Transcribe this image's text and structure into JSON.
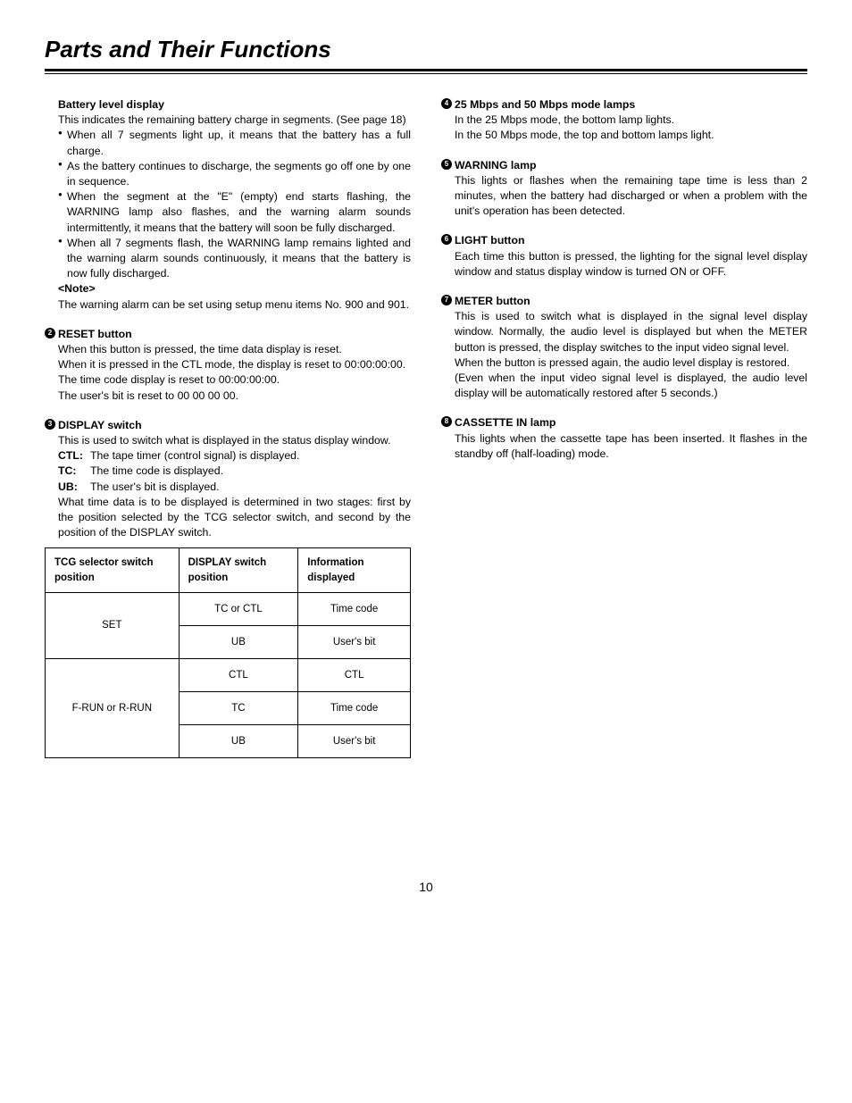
{
  "page": {
    "title": "Parts and Their Functions",
    "number": "10"
  },
  "left": {
    "battery": {
      "heading": "Battery level display",
      "intro": "This indicates the remaining battery charge in segments.  (See page 18)",
      "bullets": [
        "When all 7 segments light up, it means that the battery has a full charge.",
        "As the battery continues to discharge, the segments go off one by one in sequence.",
        "When the segment at the \"E\" (empty) end starts flashing, the WARNING lamp also flashes, and the warning alarm sounds intermittently, it means that the battery will soon be fully discharged.",
        "When all 7 segments flash, the WARNING lamp remains lighted and the warning alarm sounds continuously, it means that the battery is now fully discharged."
      ],
      "note_label": "<Note>",
      "note_text": "The warning alarm can be set using setup menu items No. 900 and 901."
    },
    "reset": {
      "num": "2",
      "heading": "RESET button",
      "p1": "When this button is pressed, the time data display is reset.",
      "p2": "When it is pressed in the CTL mode, the display is reset to 00:00:00:00.",
      "p3": "The time code display is reset to 00:00:00:00.",
      "p4": "The user's bit is reset to 00 00 00 00."
    },
    "display": {
      "num": "3",
      "heading": "DISPLAY switch",
      "intro": "This is used to switch what is displayed in the status display window.",
      "defs": [
        {
          "label": "CTL:",
          "text": "The tape timer (control signal) is displayed."
        },
        {
          "label": "TC:",
          "text": "The time code is displayed."
        },
        {
          "label": "UB:",
          "text": "The user's bit is displayed."
        }
      ],
      "after": "What time data is to be displayed is determined in two stages: first by the position selected by the TCG selector switch, and second by the position of the DISPLAY switch."
    },
    "table": {
      "headers": [
        "TCG selector switch position",
        "DISPLAY switch position",
        "Information displayed"
      ],
      "rows": [
        {
          "tcg": "SET",
          "rowspan": 2,
          "disp": "TC or CTL",
          "info": "Time code"
        },
        {
          "disp": "UB",
          "info": "User's bit"
        },
        {
          "tcg": "F-RUN or R-RUN",
          "rowspan": 3,
          "disp": "CTL",
          "info": "CTL"
        },
        {
          "disp": "TC",
          "info": "Time code"
        },
        {
          "disp": "UB",
          "info": "User's bit"
        }
      ]
    }
  },
  "right": {
    "mbps": {
      "num": "4",
      "heading": "25 Mbps and 50 Mbps mode lamps",
      "p1": "In the 25 Mbps mode, the bottom lamp lights.",
      "p2": "In the 50 Mbps mode, the top and bottom lamps light."
    },
    "warning": {
      "num": "5",
      "heading": "WARNING lamp",
      "text": "This lights or flashes when the remaining tape time is less than 2 minutes, when the battery had discharged or when a problem with the unit's operation has been detected."
    },
    "light": {
      "num": "6",
      "heading": "LIGHT button",
      "text": "Each time this button is pressed, the lighting for the signal level display window and status display window is turned ON or OFF."
    },
    "meter": {
      "num": "7",
      "heading": "METER button",
      "p1": "This is used to switch what is displayed in the signal level display window.  Normally, the audio level is displayed but when the METER button is pressed, the display switches to the input video signal level.",
      "p2": "When the button is pressed again, the audio level display is restored.",
      "p3": "(Even when the input video signal level is displayed, the audio level display will be automatically restored after 5 seconds.)"
    },
    "cassette": {
      "num": "8",
      "heading": "CASSETTE IN lamp",
      "text": "This lights when the cassette tape has been inserted.  It flashes in the standby off (half-loading) mode."
    }
  }
}
